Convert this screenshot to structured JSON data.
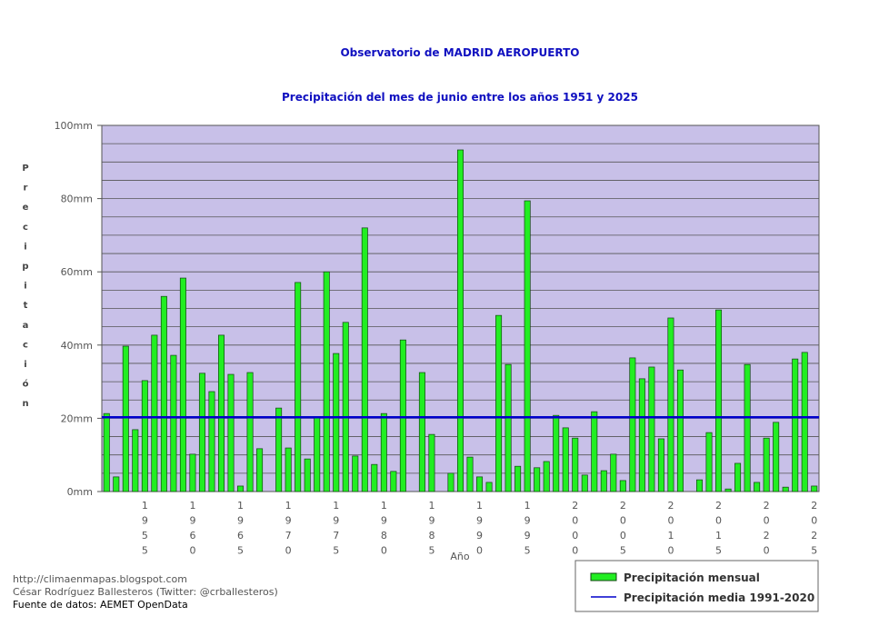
{
  "chart_data": {
    "type": "bar",
    "title": "Observatorio de MADRID AEROPUERTO",
    "subtitle": "Precipitación del mes de junio entre los años 1951 y 2025",
    "x_label": "Año",
    "y_label": "Precipitación",
    "categories": [
      null,
      null,
      null,
      null,
      "1955",
      null,
      null,
      null,
      null,
      "1960",
      null,
      null,
      null,
      null,
      "1965",
      null,
      null,
      null,
      null,
      "1970",
      null,
      null,
      null,
      null,
      "1975",
      null,
      null,
      null,
      null,
      "1980",
      null,
      null,
      null,
      null,
      "1985",
      null,
      null,
      null,
      null,
      "1990",
      null,
      null,
      null,
      null,
      "1995",
      null,
      null,
      null,
      null,
      "2000",
      null,
      null,
      null,
      null,
      "2005",
      null,
      null,
      null,
      null,
      "2010",
      null,
      null,
      null,
      null,
      "2015",
      null,
      null,
      null,
      null,
      "2020",
      null,
      null,
      null,
      null,
      "2025"
    ],
    "series": [
      {
        "name": "Precipitación mensual",
        "color": "#22ee22",
        "values": [
          21.3,
          4.0,
          39.7,
          16.9,
          30.3,
          42.7,
          53.3,
          37.2,
          58.3,
          10.2,
          32.3,
          27.3,
          42.7,
          32.0,
          1.5,
          32.5,
          11.7,
          0,
          22.8,
          11.9,
          57.1,
          8.9,
          20.1,
          60.0,
          37.7,
          46.2,
          9.7,
          72.0,
          7.4,
          21.3,
          5.5,
          41.4,
          0,
          32.5,
          15.6,
          0,
          5.0,
          93.3,
          9.4,
          4.0,
          2.5,
          48.1,
          34.7,
          6.9,
          79.4,
          6.5,
          8.2,
          20.8,
          17.4,
          14.6,
          4.5,
          21.8,
          5.7,
          10.2,
          3.0,
          36.5,
          30.8,
          34.0,
          14.4,
          47.4,
          33.2,
          0,
          3.2,
          16.1,
          49.6,
          0.7,
          7.7,
          34.7,
          2.5,
          14.6,
          18.9,
          1.2,
          36.2,
          38.0,
          1.5
        ]
      }
    ],
    "reference_line": {
      "name": "Precipitación media 1991-2020",
      "value": 20.3,
      "color": "#0000cc"
    },
    "ylim": [
      0,
      100
    ],
    "yticks": [
      {
        "value": 0,
        "label": "0mm"
      },
      {
        "value": 20,
        "label": "20mm"
      },
      {
        "value": 40,
        "label": "40mm"
      },
      {
        "value": 60,
        "label": "60mm"
      },
      {
        "value": 80,
        "label": "80mm"
      },
      {
        "value": 100,
        "label": "100mm"
      }
    ],
    "minor_yticks": [
      5,
      10,
      15,
      25,
      30,
      35,
      45,
      50,
      55,
      65,
      70,
      75,
      85,
      90,
      95
    ],
    "grid": true,
    "plot_background": "#c8c0e8",
    "legend": "bottom-right"
  },
  "footer": [
    "http://climaenmapas.blogspot.com",
    "César Rodríguez Ballesteros (Twitter: @crballesteros)",
    "Fuente de datos: AEMET OpenData"
  ]
}
